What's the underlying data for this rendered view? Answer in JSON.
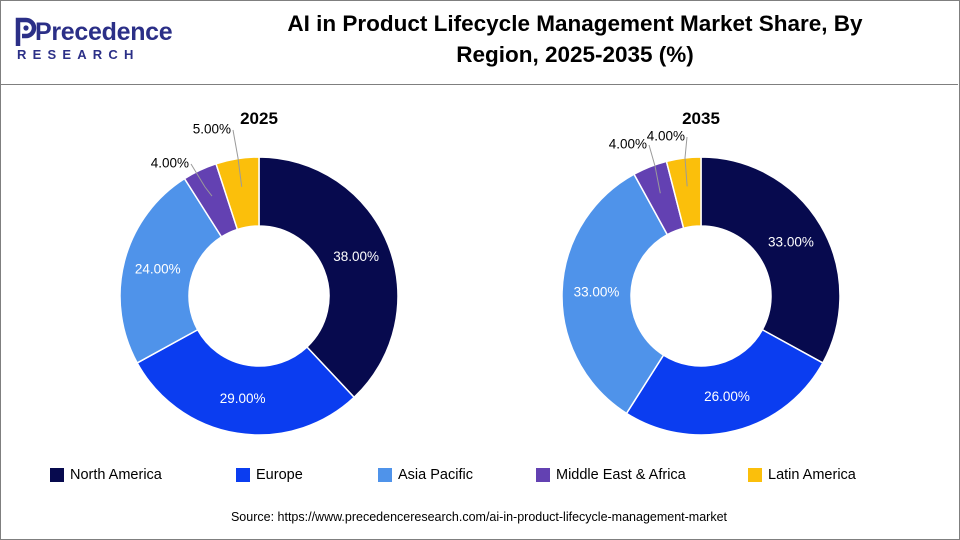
{
  "brand": {
    "name": "Precedence",
    "subtitle": "RESEARCH",
    "color": "#2b2f87"
  },
  "title_line1": "AI in Product Lifecycle Management Market Share, By",
  "title_line2": "Region, 2025-2035 (%)",
  "source": "Source: https://www.precedenceresearch.com/ai-in-product-lifecycle-management-market",
  "chart_data": [
    {
      "type": "pie",
      "donut": true,
      "title": "2025",
      "categories": [
        "North America",
        "Europe",
        "Asia Pacific",
        "Middle East & Africa",
        "Latin America"
      ],
      "values": [
        38,
        29,
        24,
        4,
        5
      ],
      "labels": [
        "38.00%",
        "29.00%",
        "24.00%",
        "4.00%",
        "5.00%"
      ],
      "colors": [
        "#070a4e",
        "#0b3df0",
        "#4f93ea",
        "#6341b2",
        "#fbbf0b"
      ]
    },
    {
      "type": "pie",
      "donut": true,
      "title": "2035",
      "categories": [
        "North America",
        "Europe",
        "Asia Pacific",
        "Middle East & Africa",
        "Latin America"
      ],
      "values": [
        33,
        26,
        33,
        4,
        4
      ],
      "labels": [
        "33.00%",
        "26.00%",
        "33.00%",
        "4.00%",
        "4.00%"
      ],
      "colors": [
        "#070a4e",
        "#0b3df0",
        "#4f93ea",
        "#6341b2",
        "#fbbf0b"
      ]
    }
  ],
  "legend": {
    "placement": "bottom",
    "items": [
      {
        "label": "North America",
        "color": "#070a4e"
      },
      {
        "label": "Europe",
        "color": "#0b3df0"
      },
      {
        "label": "Asia Pacific",
        "color": "#4f93ea"
      },
      {
        "label": "Middle East & Africa",
        "color": "#6341b2"
      },
      {
        "label": "Latin America",
        "color": "#fbbf0b"
      }
    ]
  }
}
